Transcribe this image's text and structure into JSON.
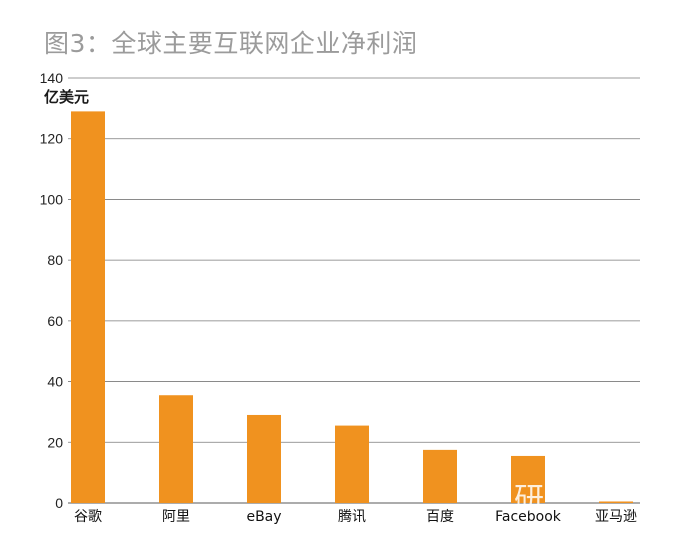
{
  "title": "图3：全球主要互联网企业净利润",
  "colors": {
    "bar": "#f0921f",
    "grid": "#7a7a7a",
    "title": "#9b9b9b"
  },
  "chart_data": {
    "type": "bar",
    "title": "图3：全球主要互联网企业净利润",
    "ylabel": "亿美元",
    "xlabel": "",
    "categories": [
      "谷歌",
      "阿里",
      "eBay",
      "腾讯",
      "百度",
      "Facebook",
      "亚马逊"
    ],
    "values": [
      129,
      35.5,
      29,
      25.5,
      17.5,
      15.5,
      0.5
    ],
    "ylim": [
      0,
      140
    ],
    "yticks": [
      0,
      20,
      40,
      60,
      80,
      100,
      120,
      140
    ],
    "grid": true,
    "legend": "none"
  }
}
